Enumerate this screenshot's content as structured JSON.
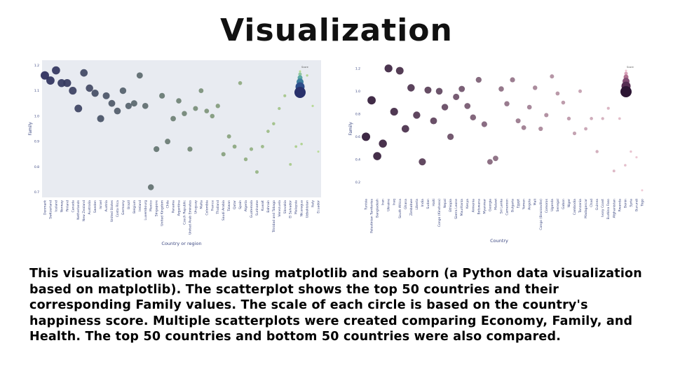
{
  "page": {
    "title": "Visualization"
  },
  "description": "This visualization was made using matplotlib and seaborn (a Python data visualization based on matplotlib). The scatterplot shows the top 50 countries and their corresponding Family values. The scale of each circle is based on the country's happiness score. Multiple scatterplots were created comparing Economy, Family, and Health. The top 50 countries and bottom 50 countries were also compared.",
  "chart_data": [
    {
      "type": "scatter",
      "title": "",
      "xlabel": "Country or region",
      "ylabel": "Family",
      "ylim": [
        0.68,
        1.22
      ],
      "yticks": [
        "0.7",
        "0.8",
        "0.9",
        "1.0",
        "1.1",
        "1.2"
      ],
      "grid": false,
      "legend_title": "Score",
      "legend_position": "top-right",
      "color_scheme": "dark-blue to light-green",
      "colors": [
        "#2b2d5c",
        "#b5db8f"
      ],
      "categories": [
        "Denmark",
        "Switzerland",
        "Iceland",
        "Norway",
        "Finland",
        "Canada",
        "Netherlands",
        "New Zealand",
        "Australia",
        "Sweden",
        "Israel",
        "Austria",
        "United States",
        "Costa Rica",
        "Germany",
        "Brazil",
        "Belgium",
        "Ireland",
        "Luxembourg",
        "Mexico",
        "Singapore",
        "United Kingdom",
        "Chile",
        "Panama",
        "Argentina",
        "Czech Republic",
        "United Arab Emirates",
        "Uruguay",
        "Malta",
        "Colombia",
        "France",
        "Thailand",
        "Saudi Arabia",
        "Taiwan",
        "Qatar",
        "Spain",
        "Algeria",
        "Guatemala",
        "Suriname",
        "Kuwait",
        "Bahrain",
        "Trinidad and Tobago",
        "Venezuela",
        "Slovakia",
        "El Salvador",
        "Malaysia",
        "Nicaragua",
        "Uzbekistan",
        "Italy",
        "Ecuador"
      ],
      "values": [
        1.16,
        1.14,
        1.18,
        1.13,
        1.13,
        1.1,
        1.03,
        1.17,
        1.11,
        1.09,
        0.99,
        1.08,
        1.05,
        1.02,
        1.1,
        1.04,
        1.05,
        1.16,
        1.04,
        0.72,
        0.87,
        1.08,
        0.9,
        0.99,
        1.06,
        1.01,
        0.87,
        1.03,
        1.1,
        1.02,
        1.0,
        1.04,
        0.85,
        0.92,
        0.88,
        1.13,
        0.83,
        0.87,
        0.78,
        0.88,
        0.94,
        0.97,
        1.03,
        1.08,
        0.81,
        0.88,
        0.89,
        1.16,
        1.04,
        0.86
      ]
    },
    {
      "type": "scatter",
      "title": "",
      "xlabel": "Country",
      "ylabel": "Family",
      "ylim": [
        0.08,
        1.26
      ],
      "yticks": [
        "0.2",
        "0.4",
        "0.6",
        "0.8",
        "1.0",
        "1.2"
      ],
      "grid": false,
      "legend_title": "Score",
      "legend_position": "top-right",
      "color_scheme": "dark purple to light pink",
      "colors": [
        "#2d1634",
        "#efc6d2"
      ],
      "categories": [
        "Tunisia",
        "Palestinian Territories",
        "Bangladesh",
        "Iran",
        "Ukraine",
        "Iraq",
        "South Africa",
        "Ghana",
        "Zimbabwe",
        "Liberia",
        "India",
        "Sudan",
        "Haiti",
        "Congo (Kinshasa)",
        "Nepal",
        "Ethiopia",
        "Sierra Leone",
        "Mauritania",
        "Kenya",
        "Armenia",
        "Botswana",
        "Myanmar",
        "Georgia",
        "Malawi",
        "Sri Lanka",
        "Cameroon",
        "Bulgaria",
        "Egypt",
        "Yemen",
        "Angola",
        "Mali",
        "Congo (Brazzaville)",
        "Comoros",
        "Uganda",
        "Senegal",
        "Gabon",
        "Niger",
        "Cambodia",
        "Tanzania",
        "Madagascar",
        "Chad",
        "Guinea",
        "Ivory Coast",
        "Burkina Faso",
        "Afghanistan",
        "Rwanda",
        "Benin",
        "Syria",
        "Burundi",
        "Togo"
      ],
      "values": [
        0.6,
        0.92,
        0.43,
        0.54,
        1.2,
        0.82,
        1.18,
        0.67,
        1.03,
        0.79,
        0.38,
        1.01,
        0.74,
        1.0,
        0.86,
        0.6,
        0.95,
        1.02,
        0.87,
        0.77,
        1.1,
        0.71,
        0.38,
        0.41,
        1.02,
        0.89,
        1.1,
        0.74,
        0.68,
        0.86,
        1.03,
        0.67,
        0.79,
        1.13,
        0.98,
        0.9,
        0.76,
        0.63,
        1.0,
        0.67,
        0.76,
        0.47,
        0.76,
        0.85,
        0.3,
        0.76,
        0.35,
        0.47,
        0.42,
        0.13
      ]
    }
  ]
}
